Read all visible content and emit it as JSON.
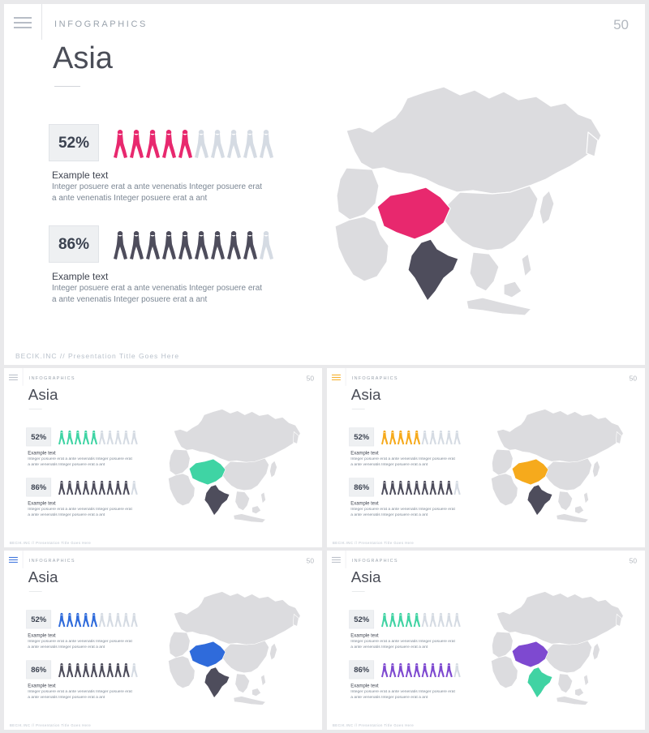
{
  "header": "INFOGRAPHICS",
  "page_number": "50",
  "title": "Asia",
  "footer": "BECIK.INC // Presentation Title Goes Here",
  "stats": [
    {
      "percent": "52%",
      "value": 0.52,
      "title": "Example text",
      "description": "Integer posuere erat a ante venenatis Integer posuere erat a ante venenatis Integer posuere erat a ant"
    },
    {
      "percent": "86%",
      "value": 0.86,
      "title": "Example text",
      "description": "Integer posuere erat a ante venenatis Integer posuere erat a ante venenatis Integer posuere erat a ant"
    }
  ],
  "icons": {
    "menu": "hamburger-menu-icon",
    "person": "walking-person-icon",
    "map": "asia-map"
  },
  "colors": {
    "inactive_person": "#d5dbe3",
    "map_base": "#dcdcdf",
    "variants": [
      {
        "name": "pink",
        "accent": "#e8286e",
        "second": "#4e4d5c",
        "menu": "#b7bdc6"
      },
      {
        "name": "teal",
        "accent": "#3fd4a4",
        "second": "#4e4d5c",
        "menu": "#b7bdc6"
      },
      {
        "name": "amber",
        "accent": "#f6aa1c",
        "second": "#4e4d5c",
        "menu": "#f6aa1c"
      },
      {
        "name": "blue",
        "accent": "#2f6bdb",
        "second": "#4e4d5c",
        "menu": "#2f6bdb"
      },
      {
        "name": "violet",
        "accent": "#40d3a3",
        "second": "#7e49d0",
        "region_primary": "#7e49d0",
        "region_secondary": "#40d3a3",
        "menu": "#b7bdc6"
      }
    ]
  }
}
